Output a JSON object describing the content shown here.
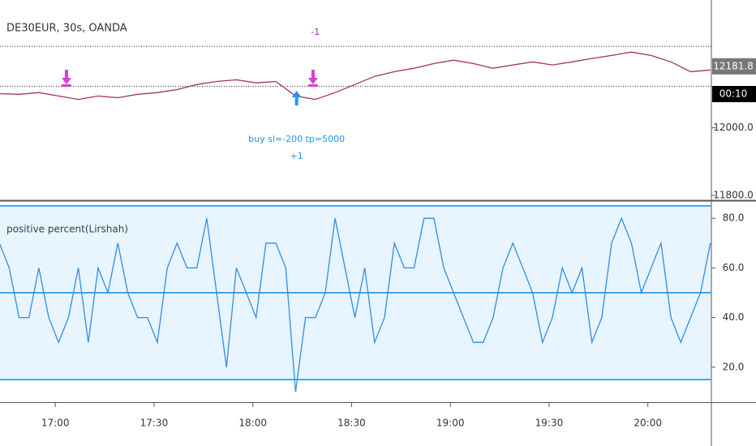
{
  "chart_data": [
    {
      "type": "line",
      "title": "DE30EUR, 30s, OANDA",
      "x": [
        1003,
        1009,
        1015,
        1021,
        1027,
        1033,
        1039,
        1045,
        1051,
        1057,
        1063,
        1069,
        1075,
        1081,
        1087,
        1093,
        1099,
        1105,
        1111,
        1117,
        1123,
        1129,
        1135,
        1141,
        1147,
        1153,
        1159,
        1165,
        1171,
        1177,
        1183,
        1189,
        1195,
        1201,
        1207,
        1213,
        1219
      ],
      "series": [
        {
          "color": "#a1306a",
          "values": [
            12101,
            12099,
            12104,
            12094,
            12084,
            12094,
            12089,
            12099,
            12104,
            12113,
            12128,
            12137,
            12142,
            12133,
            12137,
            12094,
            12084,
            12104,
            12128,
            12152,
            12166,
            12176,
            12190,
            12200,
            12190,
            12176,
            12186,
            12195,
            12186,
            12195,
            12205,
            12214,
            12224,
            12214,
            12195,
            12166,
            12171
          ]
        }
      ],
      "xlim": [
        1003.2,
        1219.3
      ],
      "ylim": [
        11788,
        12378
      ],
      "yticks": [
        {
          "value": 12000,
          "label": "12000.0"
        },
        {
          "value": 11800,
          "label": "11800.0"
        }
      ],
      "last_price": 12181.8,
      "countdown": "00:10",
      "levels": [
        12241,
        12123
      ],
      "signals": [
        {
          "side": "sell",
          "x": 1023.4,
          "color": "#d63fd6"
        },
        {
          "side": "buy",
          "x": 1093.3,
          "color": "#2196f3"
        },
        {
          "side": "sell",
          "x": 1098.3,
          "color": "#d63fd6"
        }
      ],
      "annotations": [
        {
          "text": "-1",
          "x": 1099,
          "color": "#9c27b0"
        },
        {
          "text": "buy sl=-200 tp=5000",
          "x": 1093.3,
          "color": "#2196f3"
        },
        {
          "text": "+1",
          "x": 1093.3,
          "color": "#2196f3"
        }
      ]
    },
    {
      "type": "line",
      "title": "positive percent(Lirshah)",
      "x": [
        1003,
        1006,
        1009,
        1012,
        1015,
        1018,
        1021,
        1024,
        1027,
        1030,
        1033,
        1036,
        1039,
        1042,
        1045,
        1048,
        1051,
        1054,
        1057,
        1060,
        1063,
        1066,
        1069,
        1072,
        1075,
        1078,
        1081,
        1084,
        1087,
        1090,
        1093,
        1096,
        1099,
        1102,
        1105,
        1108,
        1111,
        1114,
        1117,
        1120,
        1123,
        1126,
        1129,
        1132,
        1135,
        1138,
        1141,
        1144,
        1147,
        1150,
        1153,
        1156,
        1159,
        1162,
        1165,
        1168,
        1171,
        1174,
        1177,
        1180,
        1183,
        1186,
        1189,
        1192,
        1195,
        1198,
        1201,
        1204,
        1207,
        1210,
        1213,
        1216,
        1219
      ],
      "series": [
        {
          "color": "#2f8ee0",
          "values": [
            70,
            60,
            40,
            40,
            60,
            40,
            30,
            40,
            60,
            30,
            60,
            50,
            70,
            50,
            40,
            40,
            30,
            60,
            70,
            60,
            60,
            80,
            50,
            20,
            60,
            50,
            40,
            70,
            70,
            60,
            10,
            40,
            40,
            50,
            80,
            60,
            40,
            60,
            30,
            40,
            70,
            60,
            60,
            80,
            80,
            60,
            50,
            40,
            30,
            30,
            40,
            60,
            70,
            60,
            50,
            30,
            40,
            60,
            50,
            60,
            30,
            40,
            70,
            80,
            70,
            50,
            60,
            70,
            40,
            30,
            40,
            50,
            70
          ]
        }
      ],
      "bands": {
        "upper": 85,
        "middle": 50,
        "lower": 15,
        "color": "#42a5f5"
      },
      "xlim": [
        1003.2,
        1219.3
      ],
      "ylim": [
        6.2,
        86.6
      ],
      "yticks": [
        {
          "value": 80,
          "label": "80.0"
        },
        {
          "value": 60,
          "label": "60.0"
        },
        {
          "value": 40,
          "label": "40.0"
        },
        {
          "value": 20,
          "label": "20.0"
        }
      ],
      "xticks": [
        {
          "value": 1020,
          "label": "17:00"
        },
        {
          "value": 1050,
          "label": "17:30"
        },
        {
          "value": 1080,
          "label": "18:00"
        },
        {
          "value": 1110,
          "label": "18:30"
        },
        {
          "value": 1140,
          "label": "19:00"
        },
        {
          "value": 1170,
          "label": "19:30"
        },
        {
          "value": 1200,
          "label": "20:00"
        }
      ]
    }
  ]
}
